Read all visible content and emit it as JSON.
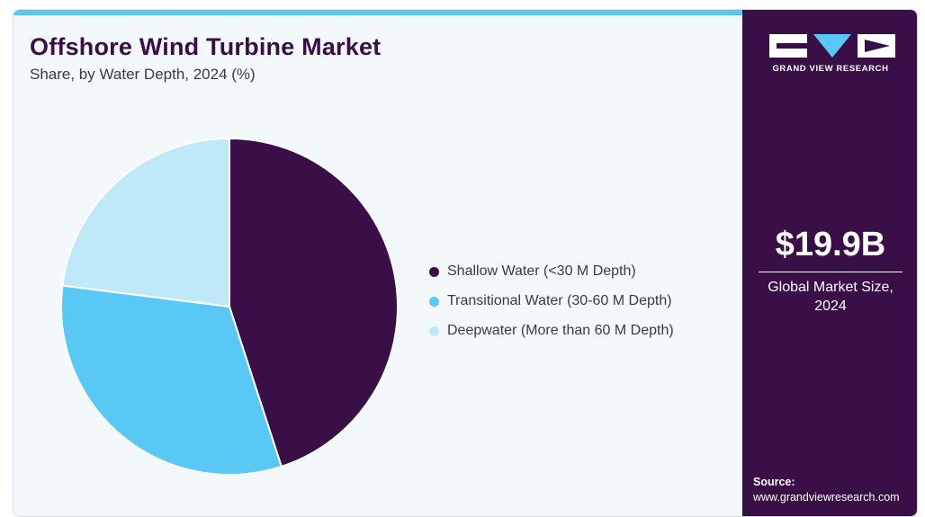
{
  "header": {
    "title": "Offshore Wind Turbine Market",
    "subtitle": "Share, by Water Depth, 2024 (%)"
  },
  "sidebar": {
    "brand": "GRAND VIEW RESEARCH",
    "logo_icon": "gvr-logo-icon",
    "market_size_value": "$19.9B",
    "market_size_caption": "Global Market Size, 2024",
    "source_label": "Source:",
    "source_url": "www.grandviewresearch.com"
  },
  "colors": {
    "accent": "#5ac8f5",
    "brand_purple": "#3a0f47",
    "panel_background": "#f3f8fb"
  },
  "chart_data": {
    "type": "pie",
    "title": "Offshore Wind Turbine Market",
    "subtitle": "Share, by Water Depth, 2024 (%)",
    "legend_position": "right",
    "start_angle_deg": 0,
    "direction": "clockwise",
    "categories": [
      "Shallow Water (<30 M Depth)",
      "Transitional Water (30-60 M Depth)",
      "Deepwater (More than 60 M Depth)"
    ],
    "values": [
      45,
      32,
      23
    ],
    "colors": [
      "#3a0f47",
      "#5ac8f5",
      "#bfe8f8"
    ]
  }
}
